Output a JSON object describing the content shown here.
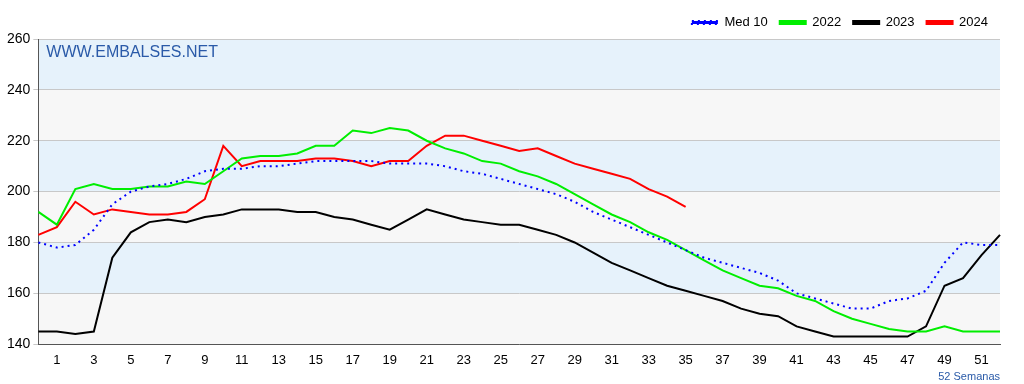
{
  "chart_data": {
    "type": "line",
    "annotations": [
      {
        "text": "WWW.EMBALSES.NET"
      }
    ],
    "xlabel": "52 Semanas",
    "categories": [
      null,
      "1",
      null,
      "3",
      null,
      "5",
      null,
      "7",
      null,
      "9",
      null,
      "11",
      null,
      "13",
      null,
      "15",
      null,
      "17",
      null,
      "19",
      null,
      "21",
      null,
      "23",
      null,
      "25",
      null,
      "27",
      null,
      "29",
      null,
      "31",
      null,
      "33",
      null,
      "35",
      null,
      "37",
      null,
      "39",
      null,
      "41",
      null,
      "43",
      null,
      "45",
      null,
      "47",
      null,
      "49",
      null,
      "51",
      null
    ],
    "ylim": [
      140,
      260
    ],
    "yticks": [
      140,
      160,
      180,
      200,
      220,
      240,
      260
    ],
    "grid": true,
    "legend": "upper right",
    "series": [
      {
        "name": "Med 10",
        "color": "#0000ff",
        "line_style": "dotted",
        "marker": "none",
        "values": [
          180,
          178,
          179,
          185,
          195,
          200,
          202,
          203,
          205,
          208,
          209,
          209,
          210,
          210,
          211,
          212,
          212,
          212,
          212,
          211,
          211,
          211,
          210,
          208,
          207,
          205,
          203,
          201,
          199,
          196,
          192,
          189,
          186,
          183,
          180,
          177,
          174,
          172,
          170,
          168,
          165,
          160,
          158,
          156,
          154,
          154,
          157,
          158,
          161,
          172,
          180,
          179,
          179
        ]
      },
      {
        "name": "2022",
        "color": "#00ee00",
        "line_style": "solid",
        "marker": "none",
        "values": [
          192,
          187,
          201,
          203,
          201,
          201,
          202,
          202,
          204,
          203,
          208,
          213,
          214,
          214,
          215,
          218,
          218,
          224,
          223,
          225,
          224,
          220,
          217,
          215,
          212,
          211,
          208,
          206,
          203,
          199,
          195,
          191,
          188,
          184,
          181,
          177,
          173,
          169,
          166,
          163,
          162,
          159,
          157,
          153,
          150,
          148,
          146,
          145,
          145,
          147,
          145,
          145,
          145
        ]
      },
      {
        "name": "2023",
        "color": "#000000",
        "line_style": "solid",
        "marker": "none",
        "values": [
          145,
          145,
          144,
          145,
          174,
          184,
          188,
          189,
          188,
          190,
          191,
          193,
          193,
          193,
          192,
          192,
          190,
          189,
          187,
          185,
          189,
          193,
          191,
          189,
          188,
          187,
          187,
          185,
          183,
          180,
          176,
          172,
          169,
          166,
          163,
          161,
          159,
          157,
          154,
          152,
          151,
          147,
          145,
          143,
          143,
          143,
          143,
          143,
          147,
          163,
          166,
          175,
          183
        ]
      },
      {
        "name": "2024",
        "color": "#ff0000",
        "line_style": "solid",
        "marker": "none",
        "values": [
          183,
          186,
          196,
          191,
          193,
          192,
          191,
          191,
          192,
          197,
          218,
          210,
          212,
          212,
          212,
          213,
          213,
          212,
          210,
          212,
          212,
          218,
          222,
          222,
          220,
          218,
          216,
          217,
          214,
          211,
          209,
          207,
          205,
          201,
          198,
          194,
          null,
          null,
          null,
          null,
          null,
          null,
          null,
          null,
          null,
          null,
          null,
          null,
          null,
          null,
          null,
          null,
          null
        ]
      }
    ]
  }
}
